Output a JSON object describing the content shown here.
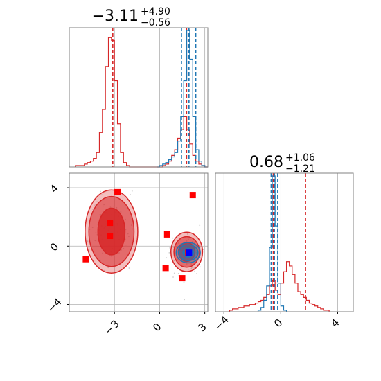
{
  "chart_data": [
    {
      "type": "histogram",
      "panel": "marginal-x",
      "title": {
        "median": "−3.11",
        "plus": "+4.90",
        "minus": "−0.56"
      },
      "xlim": [
        -6.0,
        3.2
      ],
      "grid": true,
      "series": [
        {
          "color": "#d62728",
          "bins": {
            "x": [
              -5.5,
              -5.3,
              -5.1,
              -4.9,
              -4.7,
              -4.5,
              -4.3,
              -4.1,
              -3.9,
              -3.7,
              -3.5,
              -3.3,
              -3.1,
              -2.9,
              -2.7,
              -2.5,
              -2.3,
              -2.1,
              -1.9,
              -1.7,
              -1.5,
              -1.3,
              -1.1,
              -0.9,
              -0.7,
              -0.5,
              -0.3,
              -0.1,
              0.1,
              0.3,
              0.5,
              0.7,
              0.9,
              1.1,
              1.3,
              1.5,
              1.7,
              1.9,
              2.1,
              2.3,
              2.5,
              2.7,
              2.9,
              3.1
            ],
            "h": [
              0.01,
              0.01,
              0.01,
              0.02,
              0.03,
              0.04,
              0.06,
              0.1,
              0.24,
              0.4,
              0.7,
              0.9,
              0.88,
              0.6,
              0.3,
              0.1,
              0.03,
              0.01,
              0.0,
              0.0,
              0.0,
              0.0,
              0.0,
              0.0,
              0.0,
              0.0,
              0.0,
              0.0,
              0.0,
              0.01,
              0.02,
              0.04,
              0.08,
              0.12,
              0.2,
              0.26,
              0.35,
              0.26,
              0.16,
              0.08,
              0.04,
              0.02,
              0.01,
              0.0
            ]
          },
          "quantiles": [
            -3.11,
            1.79
          ]
        },
        {
          "color": "#1f77b4",
          "bins": {
            "x": [
              -0.1,
              0.1,
              0.3,
              0.5,
              0.7,
              0.9,
              1.1,
              1.3,
              1.5,
              1.7,
              1.9,
              2.1,
              2.3,
              2.5,
              2.7,
              2.9,
              3.1
            ],
            "h": [
              0.0,
              0.01,
              0.02,
              0.03,
              0.05,
              0.07,
              0.1,
              0.18,
              0.35,
              0.6,
              0.95,
              0.75,
              0.35,
              0.12,
              0.04,
              0.01,
              0.0
            ]
          },
          "quantiles": [
            1.45,
            1.95,
            2.4
          ]
        }
      ],
      "median_line": 1.79
    },
    {
      "type": "histogram",
      "panel": "marginal-y",
      "title": {
        "median": "0.68",
        "plus": "+1.06",
        "minus": "−1.21"
      },
      "xlim": [
        -4.6,
        5.1
      ],
      "xticks": [
        -4,
        0,
        4
      ],
      "xtick_labels": [
        "−4",
        "0",
        "4"
      ],
      "grid": true,
      "series": [
        {
          "color": "#d62728",
          "bins": {
            "x": [
              -3.5,
              -3.3,
              -3.1,
              -2.9,
              -2.7,
              -2.5,
              -2.3,
              -2.1,
              -1.9,
              -1.7,
              -1.5,
              -1.3,
              -1.1,
              -0.9,
              -0.7,
              -0.5,
              -0.3,
              -0.1,
              0.1,
              0.3,
              0.5,
              0.7,
              0.9,
              1.1,
              1.3,
              1.5,
              1.7,
              1.9,
              2.1,
              2.3,
              2.5,
              2.7,
              2.9,
              3.1,
              3.3
            ],
            "h": [
              0.01,
              0.02,
              0.02,
              0.03,
              0.03,
              0.04,
              0.04,
              0.05,
              0.05,
              0.06,
              0.07,
              0.08,
              0.1,
              0.12,
              0.18,
              0.22,
              0.15,
              0.12,
              0.2,
              0.28,
              0.35,
              0.32,
              0.26,
              0.2,
              0.14,
              0.12,
              0.1,
              0.08,
              0.06,
              0.05,
              0.04,
              0.03,
              0.02,
              0.01,
              0.01
            ]
          },
          "quantiles": [
            -0.53,
            1.74
          ]
        },
        {
          "color": "#1f77b4",
          "bins": {
            "x": [
              -1.5,
              -1.3,
              -1.1,
              -0.9,
              -0.7,
              -0.5,
              -0.3,
              -0.1,
              0.1,
              0.3
            ],
            "h": [
              0.01,
              0.03,
              0.08,
              0.18,
              0.45,
              0.95,
              0.6,
              0.2,
              0.04,
              0.01
            ]
          },
          "quantiles": [
            -0.68,
            -0.45,
            -0.22
          ]
        }
      ],
      "median_line": -0.53
    },
    {
      "type": "contour",
      "panel": "joint",
      "xlim": [
        -6.0,
        3.2
      ],
      "ylim": [
        -4.5,
        5.0
      ],
      "xticks": [
        -3,
        0,
        3
      ],
      "xtick_labels": [
        "−3",
        "0",
        "3"
      ],
      "yticks": [
        -4,
        0,
        4
      ],
      "ytick_labels": [
        "−4",
        "0",
        "4"
      ],
      "grid": true,
      "modes": [
        {
          "color": "#d62728",
          "center": [
            -3.2,
            1.0
          ],
          "radii": [
            [
              0.9,
              1.6
            ],
            [
              1.5,
              2.4
            ],
            [
              1.75,
              2.85
            ]
          ]
        },
        {
          "color": "#d62728",
          "center": [
            1.8,
            -0.4
          ],
          "radii": [
            [
              0.55,
              0.65
            ],
            [
              0.85,
              1.05
            ],
            [
              1.05,
              1.35
            ]
          ]
        },
        {
          "color": "#1f77b4",
          "center": [
            1.9,
            -0.45
          ],
          "radii": [
            [
              0.35,
              0.3
            ],
            [
              0.65,
              0.55
            ],
            [
              0.8,
              0.7
            ]
          ]
        }
      ],
      "red_markers": [
        [
          -2.8,
          3.7
        ],
        [
          2.2,
          3.5
        ],
        [
          -3.3,
          1.6
        ],
        [
          -3.3,
          0.7
        ],
        [
          0.5,
          0.8
        ],
        [
          -4.9,
          -0.9
        ],
        [
          0.4,
          -1.5
        ],
        [
          1.5,
          -2.2
        ],
        [
          1.9,
          -0.45
        ]
      ],
      "blue_markers": [
        [
          1.95,
          -0.45
        ]
      ]
    }
  ]
}
